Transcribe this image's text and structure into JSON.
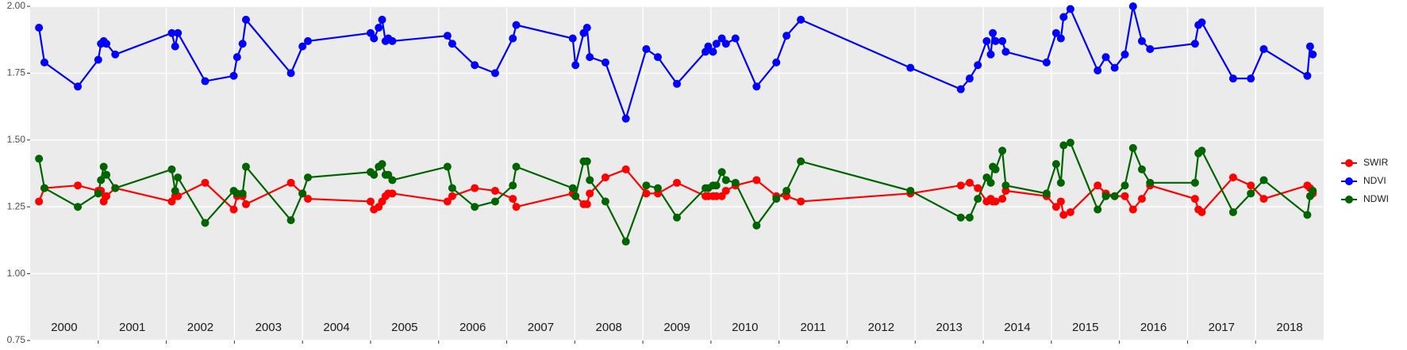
{
  "chart_data": {
    "type": "line",
    "x": [
      2000.13,
      2000.21,
      2000.7,
      2001.0,
      2001.04,
      2001.08,
      2001.12,
      2001.25,
      2002.08,
      2002.13,
      2002.17,
      2002.57,
      2002.99,
      2003.04,
      2003.12,
      2003.17,
      2003.83,
      2004.0,
      2004.08,
      2005.0,
      2005.05,
      2005.12,
      2005.17,
      2005.22,
      2005.26,
      2005.32,
      2006.13,
      2006.2,
      2006.53,
      2006.83,
      2007.09,
      2007.14,
      2007.97,
      2008.01,
      2008.13,
      2008.18,
      2008.22,
      2008.45,
      2008.75,
      2009.05,
      2009.22,
      2009.5,
      2009.92,
      2009.96,
      2010.03,
      2010.08,
      2010.16,
      2010.22,
      2010.36,
      2010.67,
      2010.96,
      2011.11,
      2011.32,
      2012.93,
      2013.67,
      2013.8,
      2013.92,
      2014.05,
      2014.11,
      2014.14,
      2014.18,
      2014.28,
      2014.33,
      2014.93,
      2015.07,
      2015.14,
      2015.18,
      2015.28,
      2015.68,
      2015.8,
      2015.93,
      2016.08,
      2016.2,
      2016.33,
      2016.45,
      2017.11,
      2017.16,
      2017.21,
      2017.67,
      2017.93,
      2018.12,
      2018.76,
      2018.8,
      2018.84
    ],
    "series": [
      {
        "name": "SWIR",
        "color": "#ff0000",
        "values": [
          1.27,
          1.32,
          1.33,
          1.31,
          1.31,
          1.27,
          1.29,
          1.32,
          1.27,
          1.29,
          1.29,
          1.34,
          1.24,
          1.29,
          1.29,
          1.26,
          1.34,
          1.3,
          1.28,
          1.27,
          1.24,
          1.25,
          1.27,
          1.29,
          1.3,
          1.3,
          1.27,
          1.29,
          1.32,
          1.31,
          1.28,
          1.25,
          1.3,
          1.29,
          1.26,
          1.26,
          1.3,
          1.36,
          1.39,
          1.3,
          1.3,
          1.34,
          1.29,
          1.29,
          1.29,
          1.29,
          1.29,
          1.31,
          1.33,
          1.35,
          1.29,
          1.29,
          1.27,
          1.3,
          1.33,
          1.34,
          1.32,
          1.27,
          1.28,
          1.27,
          1.27,
          1.28,
          1.31,
          1.29,
          1.25,
          1.27,
          1.22,
          1.23,
          1.33,
          1.3,
          1.29,
          1.29,
          1.24,
          1.28,
          1.33,
          1.28,
          1.24,
          1.23,
          1.36,
          1.33,
          1.28,
          1.33,
          1.32,
          1.3
        ]
      },
      {
        "name": "NDVI",
        "color": "#0000ff",
        "values": [
          1.92,
          1.79,
          1.7,
          1.8,
          1.86,
          1.87,
          1.86,
          1.82,
          1.9,
          1.85,
          1.9,
          1.72,
          1.74,
          1.81,
          1.86,
          1.95,
          1.75,
          1.85,
          1.87,
          1.9,
          1.88,
          1.92,
          1.95,
          1.87,
          1.88,
          1.87,
          1.89,
          1.86,
          1.78,
          1.75,
          1.88,
          1.93,
          1.88,
          1.78,
          1.9,
          1.92,
          1.81,
          1.79,
          1.58,
          1.84,
          1.81,
          1.71,
          1.83,
          1.85,
          1.83,
          1.86,
          1.88,
          1.86,
          1.88,
          1.7,
          1.79,
          1.89,
          1.95,
          1.77,
          1.69,
          1.73,
          1.78,
          1.87,
          1.82,
          1.9,
          1.87,
          1.87,
          1.83,
          1.79,
          1.9,
          1.88,
          1.96,
          1.99,
          1.76,
          1.81,
          1.77,
          1.82,
          2.0,
          1.87,
          1.84,
          1.86,
          1.93,
          1.94,
          1.73,
          1.73,
          1.84,
          1.74,
          1.85,
          1.82
        ]
      },
      {
        "name": "NDWI",
        "color": "#006400",
        "values": [
          1.43,
          1.32,
          1.25,
          1.3,
          1.35,
          1.4,
          1.37,
          1.32,
          1.39,
          1.31,
          1.36,
          1.19,
          1.31,
          1.3,
          1.3,
          1.4,
          1.2,
          1.3,
          1.36,
          1.38,
          1.37,
          1.4,
          1.41,
          1.37,
          1.37,
          1.35,
          1.4,
          1.32,
          1.25,
          1.27,
          1.33,
          1.4,
          1.32,
          1.29,
          1.42,
          1.42,
          1.35,
          1.27,
          1.12,
          1.33,
          1.32,
          1.21,
          1.32,
          1.32,
          1.33,
          1.33,
          1.38,
          1.35,
          1.34,
          1.18,
          1.28,
          1.31,
          1.42,
          1.31,
          1.21,
          1.21,
          1.28,
          1.36,
          1.34,
          1.4,
          1.39,
          1.46,
          1.33,
          1.3,
          1.41,
          1.34,
          1.48,
          1.49,
          1.24,
          1.29,
          1.29,
          1.33,
          1.47,
          1.39,
          1.34,
          1.34,
          1.45,
          1.46,
          1.23,
          1.3,
          1.35,
          1.22,
          1.29,
          1.31
        ]
      }
    ],
    "year_labels": [
      "2000",
      "2001",
      "2002",
      "2003",
      "2004",
      "2005",
      "2006",
      "2007",
      "2008",
      "2009",
      "2010",
      "2011",
      "2012",
      "2013",
      "2014",
      "2015",
      "2016",
      "2017",
      "2018"
    ],
    "xlim": [
      2000,
      2019
    ],
    "xticks": [
      2001,
      2002,
      2003,
      2004,
      2005,
      2006,
      2007,
      2008,
      2009,
      2010,
      2011,
      2012,
      2013,
      2014,
      2015,
      2016,
      2017,
      2018
    ],
    "ylim": [
      0.75,
      2.0
    ],
    "yticks": [
      0.75,
      {
        "value": 1.0,
        "label": "1.00"
      },
      1.25,
      {
        "value": 1.5,
        "label": "1.50"
      },
      1.75,
      {
        "value": 2.0,
        "label": "2.00"
      }
    ],
    "grid": true
  }
}
